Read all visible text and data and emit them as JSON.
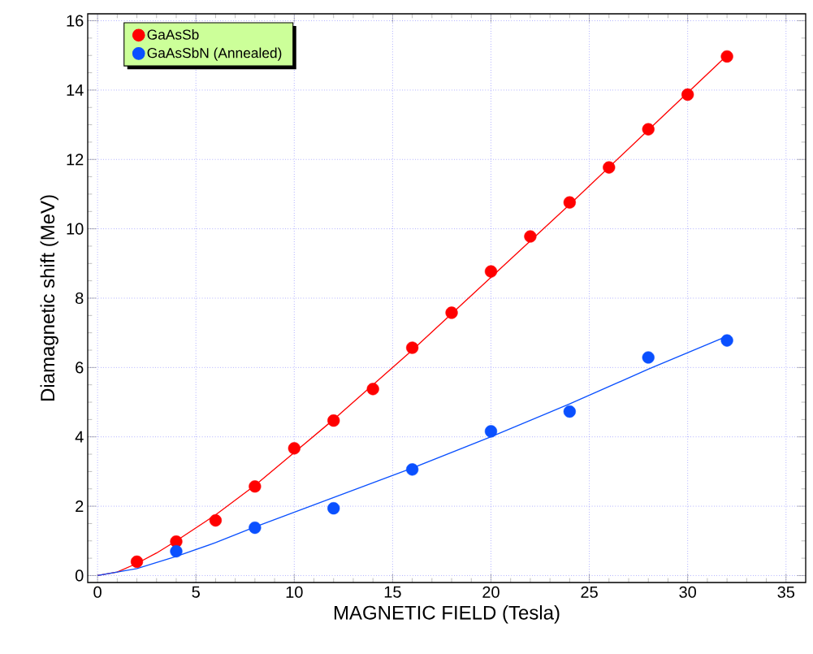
{
  "chart_data": {
    "type": "scatter",
    "xlabel": "MAGNETIC FIELD (Tesla)",
    "ylabel": "Diamagnetic shift (MeV)",
    "xlim": [
      -0.5,
      36
    ],
    "ylim": [
      -0.2,
      16.2
    ],
    "xticks": [
      0,
      5,
      10,
      15,
      20,
      25,
      30,
      35
    ],
    "yticks": [
      0,
      2,
      4,
      6,
      8,
      10,
      12,
      14,
      16
    ],
    "grid": true,
    "legend": "top left",
    "series": [
      {
        "name": "GaAsSb",
        "marker": "circle",
        "color": "#ff0000",
        "x": [
          2,
          4,
          6,
          8,
          10,
          12,
          14,
          16,
          18,
          20,
          22,
          24,
          26,
          28,
          30,
          32
        ],
        "values": [
          0.4,
          0.98,
          1.59,
          2.57,
          3.67,
          4.47,
          5.38,
          6.57,
          7.58,
          8.77,
          9.78,
          10.76,
          11.77,
          12.87,
          13.87,
          14.97
        ]
      },
      {
        "name": "GaAsSbN (Annealed)",
        "marker": "circle",
        "color": "#0a50ff",
        "x": [
          4,
          8,
          12,
          16,
          20,
          24,
          28,
          32
        ],
        "values": [
          0.7,
          1.38,
          1.94,
          3.06,
          4.16,
          4.73,
          6.29,
          6.78
        ]
      },
      {
        "type": "line",
        "color": "#ff0000",
        "marker": "none",
        "line_style": "solid",
        "x": [
          0,
          1,
          2,
          3,
          4,
          6,
          8,
          10,
          12,
          16,
          20,
          24,
          28,
          32
        ],
        "values": [
          0,
          0.1,
          0.35,
          0.65,
          1.0,
          1.75,
          2.6,
          3.55,
          4.5,
          6.5,
          8.6,
          10.7,
          12.85,
          15.0
        ]
      },
      {
        "type": "line",
        "color": "#0a50ff",
        "marker": "none",
        "line_style": "solid",
        "x": [
          0,
          2,
          4,
          6,
          8,
          12,
          16,
          20,
          24,
          28,
          32
        ],
        "values": [
          0,
          0.2,
          0.55,
          0.95,
          1.4,
          2.25,
          3.1,
          4.0,
          4.95,
          5.95,
          6.9
        ]
      }
    ]
  }
}
